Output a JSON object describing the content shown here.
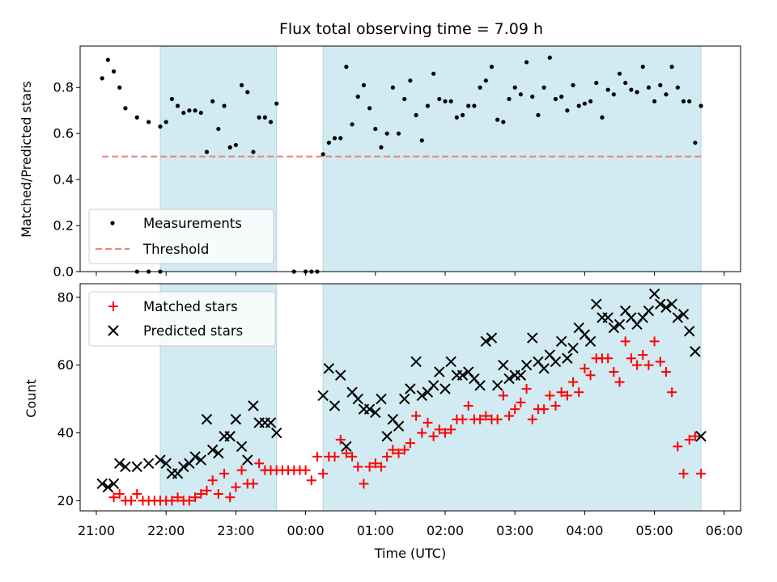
{
  "chart_data": [
    {
      "type": "scatter",
      "title": "Flux total observing time = 7.09 h",
      "ylabel": "Matched/Predicted stars",
      "xlabel": "",
      "xlim": [
        "21:00",
        "06:00"
      ],
      "ylim": [
        0,
        0.98
      ],
      "yticks": [
        "0.0",
        "0.2",
        "0.4",
        "0.6",
        "0.8"
      ],
      "legend_position": "lower-left",
      "shaded_intervals": [
        [
          "21:55",
          "23:35"
        ],
        [
          "00:15",
          "05:40"
        ]
      ],
      "shade_color": "#add8e6",
      "series": [
        {
          "name": "Measurements",
          "color": "#000000",
          "marker": "dot",
          "x": [
            "21:05",
            "21:10",
            "21:15",
            "21:20",
            "21:25",
            "21:35",
            "21:45",
            "21:55",
            "22:00",
            "22:05",
            "22:10",
            "22:15",
            "22:20",
            "22:25",
            "22:30",
            "22:35",
            "22:40",
            "22:45",
            "22:50",
            "22:55",
            "23:00",
            "23:05",
            "23:10",
            "23:15",
            "23:20",
            "23:25",
            "23:30",
            "23:35",
            "00:15",
            "00:20",
            "00:25",
            "00:30",
            "00:35",
            "00:40",
            "00:45",
            "00:50",
            "00:55",
            "01:00",
            "01:05",
            "01:10",
            "01:15",
            "01:20",
            "01:25",
            "01:30",
            "01:35",
            "01:40",
            "01:45",
            "01:50",
            "01:55",
            "02:00",
            "02:05",
            "02:10",
            "02:15",
            "02:20",
            "02:25",
            "02:30",
            "02:35",
            "02:40",
            "02:45",
            "02:50",
            "02:55",
            "03:00",
            "03:05",
            "03:10",
            "03:15",
            "03:20",
            "03:25",
            "03:30",
            "03:35",
            "03:40",
            "03:45",
            "03:50",
            "03:55",
            "04:00",
            "04:05",
            "04:10",
            "04:15",
            "04:20",
            "04:25",
            "04:30",
            "04:35",
            "04:40",
            "04:45",
            "04:50",
            "04:55",
            "05:00",
            "05:05",
            "05:10",
            "05:15",
            "05:20",
            "05:25",
            "05:30",
            "05:35",
            "05:40"
          ],
          "y": [
            0.84,
            0.92,
            0.87,
            0.8,
            0.71,
            0.67,
            0.65,
            0.63,
            0.65,
            0.75,
            0.72,
            0.69,
            0.7,
            0.7,
            0.69,
            0.52,
            0.74,
            0.62,
            0.72,
            0.54,
            0.55,
            0.81,
            0.78,
            0.52,
            0.67,
            0.67,
            0.65,
            0.73,
            0.51,
            0.56,
            0.58,
            0.58,
            0.89,
            0.64,
            0.76,
            0.81,
            0.71,
            0.62,
            0.54,
            0.6,
            0.8,
            0.6,
            0.75,
            0.83,
            0.68,
            0.57,
            0.72,
            0.86,
            0.75,
            0.74,
            0.74,
            0.67,
            0.68,
            0.72,
            0.72,
            0.8,
            0.83,
            0.89,
            0.66,
            0.65,
            0.75,
            0.8,
            0.77,
            0.91,
            0.76,
            0.68,
            0.8,
            0.93,
            0.75,
            0.76,
            0.7,
            0.81,
            0.72,
            0.73,
            0.74,
            0.82,
            0.67,
            0.79,
            0.77,
            0.86,
            0.82,
            0.79,
            0.78,
            0.89,
            0.8,
            0.74,
            0.81,
            0.77,
            0.89,
            0.8,
            0.74,
            0.74,
            0.56,
            0.72
          ]
        },
        {
          "name": "Measurements",
          "color": "#000000",
          "marker": "dot",
          "x": [
            "21:35",
            "21:45",
            "21:55",
            "23:50",
            "00:00",
            "00:05",
            "00:10"
          ],
          "y": [
            0,
            0,
            0,
            0,
            0,
            0,
            0
          ]
        },
        {
          "name": "Threshold",
          "color": "#f08080",
          "style": "dashed",
          "x": [
            "21:05",
            "05:40"
          ],
          "y": [
            0.5,
            0.5
          ]
        }
      ]
    },
    {
      "type": "scatter",
      "title": "",
      "xlabel": "Time (UTC)",
      "ylabel": "Count",
      "xlim": [
        "21:00",
        "06:00"
      ],
      "ylim": [
        17,
        84
      ],
      "xticks": [
        "21:00",
        "22:00",
        "23:00",
        "00:00",
        "01:00",
        "02:00",
        "03:00",
        "04:00",
        "05:00",
        "06:00"
      ],
      "yticks": [
        "20",
        "40",
        "60",
        "80"
      ],
      "legend_position": "upper-left",
      "shaded_intervals": [
        [
          "21:55",
          "23:35"
        ],
        [
          "00:15",
          "05:40"
        ]
      ],
      "shade_color": "#add8e6",
      "series": [
        {
          "name": "Matched stars",
          "color": "#ff0000",
          "marker": "plus",
          "x": [
            "21:15",
            "21:20",
            "21:25",
            "21:30",
            "21:35",
            "21:40",
            "21:45",
            "21:50",
            "21:55",
            "22:00",
            "22:05",
            "22:10",
            "22:15",
            "22:20",
            "22:25",
            "22:30",
            "22:35",
            "22:40",
            "22:45",
            "22:50",
            "22:55",
            "23:00",
            "23:05",
            "23:10",
            "23:15",
            "23:20",
            "23:25",
            "23:30",
            "23:35",
            "23:40",
            "23:45",
            "23:50",
            "23:55",
            "00:00",
            "00:05",
            "00:10",
            "00:15",
            "00:20",
            "00:25",
            "00:30",
            "00:35",
            "00:40",
            "00:45",
            "00:50",
            "00:55",
            "01:00",
            "01:05",
            "01:10",
            "01:15",
            "01:20",
            "01:25",
            "01:30",
            "01:35",
            "01:40",
            "01:45",
            "01:50",
            "01:55",
            "02:00",
            "02:05",
            "02:10",
            "02:15",
            "02:20",
            "02:25",
            "02:30",
            "02:35",
            "02:40",
            "02:45",
            "02:50",
            "02:55",
            "03:00",
            "03:05",
            "03:10",
            "03:15",
            "03:20",
            "03:25",
            "03:30",
            "03:35",
            "03:40",
            "03:45",
            "03:50",
            "03:55",
            "04:00",
            "04:05",
            "04:10",
            "04:15",
            "04:20",
            "04:25",
            "04:30",
            "04:35",
            "04:40",
            "04:45",
            "04:50",
            "04:55",
            "05:00",
            "05:05",
            "05:10",
            "05:15",
            "05:20",
            "05:25",
            "05:30",
            "05:35",
            "05:40"
          ],
          "y": [
            21,
            22,
            20,
            20,
            22,
            20,
            20,
            20,
            20,
            20,
            20,
            21,
            20,
            20,
            21,
            22,
            23,
            26,
            22,
            28,
            21,
            24,
            29,
            25,
            25,
            31,
            29,
            29,
            29,
            29,
            29,
            29,
            29,
            29,
            26,
            33,
            28,
            33,
            33,
            38,
            34,
            33,
            30,
            25,
            30,
            31,
            30,
            33,
            35,
            34,
            35,
            37,
            45,
            40,
            43,
            39,
            41,
            40,
            41,
            44,
            44,
            48,
            44,
            44,
            45,
            44,
            44,
            51,
            45,
            47,
            49,
            53,
            44,
            47,
            47,
            51,
            48,
            52,
            51,
            55,
            52,
            59,
            57,
            62,
            62,
            62,
            58,
            55,
            67,
            62,
            60,
            63,
            60,
            67,
            61,
            58,
            52,
            36,
            28,
            38,
            39,
            28
          ]
        },
        {
          "name": "Predicted stars",
          "color": "#000000",
          "marker": "x",
          "x": [
            "21:05",
            "21:10",
            "21:15",
            "21:20",
            "21:25",
            "21:35",
            "21:45",
            "21:55",
            "22:00",
            "22:05",
            "22:10",
            "22:15",
            "22:20",
            "22:25",
            "22:30",
            "22:35",
            "22:40",
            "22:45",
            "22:50",
            "22:55",
            "23:00",
            "23:05",
            "23:10",
            "23:15",
            "23:20",
            "23:25",
            "23:30",
            "23:35",
            "00:15",
            "00:20",
            "00:25",
            "00:30",
            "00:35",
            "00:40",
            "00:45",
            "00:50",
            "00:55",
            "01:00",
            "01:05",
            "01:10",
            "01:15",
            "01:20",
            "01:25",
            "01:30",
            "01:35",
            "01:40",
            "01:45",
            "01:50",
            "01:55",
            "02:00",
            "02:05",
            "02:10",
            "02:15",
            "02:20",
            "02:25",
            "02:30",
            "02:35",
            "02:40",
            "02:45",
            "02:50",
            "02:55",
            "03:00",
            "03:05",
            "03:10",
            "03:15",
            "03:20",
            "03:25",
            "03:30",
            "03:35",
            "03:40",
            "03:45",
            "03:50",
            "03:55",
            "04:00",
            "04:05",
            "04:10",
            "04:15",
            "04:20",
            "04:25",
            "04:30",
            "04:35",
            "04:40",
            "04:45",
            "04:50",
            "04:55",
            "05:00",
            "05:05",
            "05:10",
            "05:15",
            "05:20",
            "05:25",
            "05:30",
            "05:35",
            "05:40"
          ],
          "y": [
            25,
            24,
            25,
            31,
            30,
            30,
            31,
            32,
            31,
            28,
            28,
            30,
            31,
            33,
            32,
            44,
            35,
            34,
            39,
            39,
            44,
            36,
            32,
            48,
            43,
            43,
            43,
            40,
            51,
            59,
            48,
            57,
            36,
            52,
            50,
            47,
            47,
            46,
            50,
            39,
            44,
            42,
            50,
            53,
            61,
            51,
            52,
            54,
            58,
            53,
            61,
            57,
            57,
            58,
            56,
            54,
            67,
            68,
            54,
            60,
            56,
            57,
            57,
            60,
            68,
            61,
            59,
            63,
            61,
            67,
            62,
            65,
            71,
            69,
            67,
            78,
            74,
            74,
            71,
            72,
            76,
            74,
            72,
            74,
            76,
            81,
            78,
            77,
            78,
            74,
            75,
            70,
            64,
            39
          ]
        }
      ]
    }
  ]
}
